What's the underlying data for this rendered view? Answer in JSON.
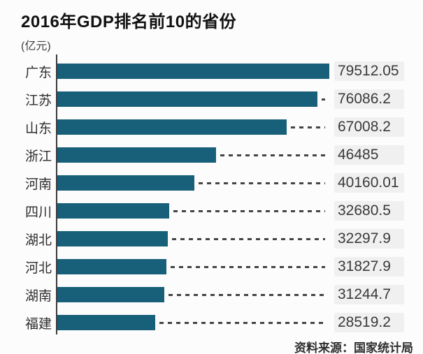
{
  "header": {
    "title": "2016年GDP排名前10的省份",
    "unit_label": "(亿元)"
  },
  "chart_data": {
    "type": "bar",
    "orientation": "horizontal",
    "title": "2016年GDP排名前10的省份",
    "unit": "亿元",
    "categories": [
      "广东",
      "江苏",
      "山东",
      "浙江",
      "河南",
      "四川",
      "湖北",
      "河北",
      "湖南",
      "福建"
    ],
    "values": [
      79512.05,
      76086.2,
      67008.2,
      46485,
      40160.01,
      32680.5,
      32297.9,
      31827.9,
      31244.7,
      28519.2
    ],
    "value_labels": [
      "79512.05",
      "76086.2",
      "67008.2",
      "46485",
      "40160.01",
      "32680.5",
      "32297.9",
      "31827.9",
      "31244.7",
      "28519.2"
    ],
    "xlim": [
      0,
      79512.05
    ],
    "grid": false,
    "legend": false,
    "bar_color": "#18607a",
    "dash_color": "#454545",
    "axis_color": "#3b3b3b"
  },
  "footer": {
    "source": "资料来源：国家统计局"
  },
  "colors": {
    "background": "#fcfcfc",
    "title_text": "#121212",
    "label_text": "#2d2d2d",
    "value_text": "#3a3a3a"
  }
}
